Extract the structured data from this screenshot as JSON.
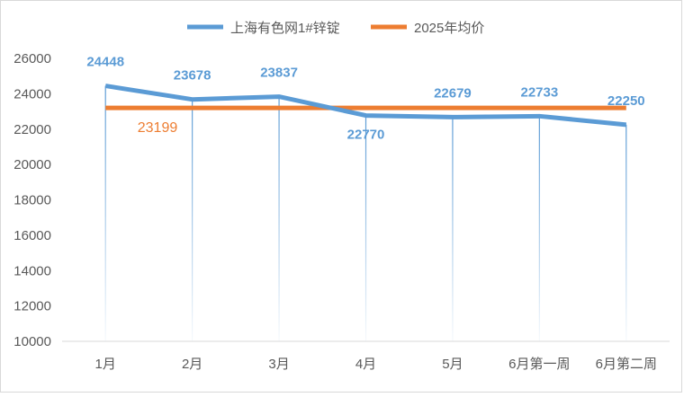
{
  "chart_data": {
    "type": "line",
    "categories": [
      "1月",
      "2月",
      "3月",
      "4月",
      "5月",
      "6月第一周",
      "6月第二周"
    ],
    "series": [
      {
        "name": "上海有色网1#锌锭",
        "values": [
          24448,
          23678,
          23837,
          22770,
          22679,
          22733,
          22250
        ],
        "color": "#5b9bd5"
      },
      {
        "name": "2025年均价",
        "values": [
          23199,
          23199,
          23199,
          23199,
          23199,
          23199,
          23199
        ],
        "color": "#ed7d31"
      }
    ],
    "average_label": "23199",
    "ylim": [
      10000,
      26000
    ],
    "yticks": [
      10000,
      12000,
      14000,
      16000,
      18000,
      20000,
      22000,
      24000,
      26000
    ],
    "legend_position": "top",
    "grid": false,
    "drop_lines": true
  }
}
